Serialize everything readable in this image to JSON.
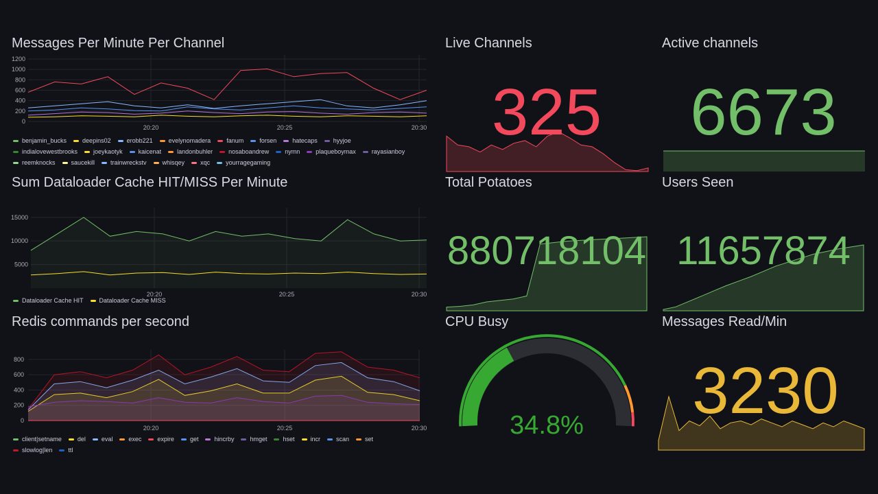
{
  "panels": {
    "messages": {
      "title": "Messages Per Minute Per Channel",
      "yticks": [
        "1200",
        "1000",
        "800",
        "600",
        "400",
        "200",
        "0"
      ],
      "xticks": [
        "20:20",
        "20:25",
        "20:30"
      ],
      "legend": [
        {
          "name": "benjamin_bucks",
          "color": "#73bf69"
        },
        {
          "name": "deepins02",
          "color": "#fade2a"
        },
        {
          "name": "erobb221",
          "color": "#8ab8ff"
        },
        {
          "name": "evelynomadera",
          "color": "#ff9830"
        },
        {
          "name": "fanum",
          "color": "#f2495c"
        },
        {
          "name": "forsen",
          "color": "#5794f2"
        },
        {
          "name": "hatecaps",
          "color": "#b877d9"
        },
        {
          "name": "hyyjoe",
          "color": "#705da0"
        },
        {
          "name": "indialovewestbrooks",
          "color": "#37872d"
        },
        {
          "name": "joeykaotyk",
          "color": "#fade2a"
        },
        {
          "name": "kaicenat",
          "color": "#5794f2"
        },
        {
          "name": "landonbuhler",
          "color": "#ff9830"
        },
        {
          "name": "nosaboandrew",
          "color": "#c4162a"
        },
        {
          "name": "nymn",
          "color": "#1f60c4"
        },
        {
          "name": "plaqueboymax",
          "color": "#8f3bb8"
        },
        {
          "name": "rayasianboy",
          "color": "#705da0"
        },
        {
          "name": "reemknocks",
          "color": "#96d98d"
        },
        {
          "name": "saucekill",
          "color": "#fff899"
        },
        {
          "name": "trainwreckstv",
          "color": "#8ab8ff"
        },
        {
          "name": "whisqey",
          "color": "#ffb357"
        },
        {
          "name": "xqc",
          "color": "#ff7383"
        },
        {
          "name": "yourragegaming",
          "color": "#73bfe8"
        }
      ]
    },
    "cache": {
      "title": "Sum Dataloader Cache HIT/MISS Per Minute",
      "yticks": [
        "15000",
        "10000",
        "5000"
      ],
      "xticks": [
        "20:20",
        "20:25",
        "20:30"
      ],
      "legend": [
        {
          "name": "Dataloader Cache HIT",
          "color": "#73bf69"
        },
        {
          "name": "Dataloader Cache MISS",
          "color": "#fade2a"
        }
      ]
    },
    "redis": {
      "title": "Redis commands per second",
      "yticks": [
        "800",
        "600",
        "400",
        "200",
        "0"
      ],
      "xticks": [
        "20:20",
        "20:25",
        "20:30"
      ],
      "legend": [
        {
          "name": "client|setname",
          "color": "#73bf69"
        },
        {
          "name": "del",
          "color": "#fade2a"
        },
        {
          "name": "eval",
          "color": "#8ab8ff"
        },
        {
          "name": "exec",
          "color": "#ff9830"
        },
        {
          "name": "expire",
          "color": "#f2495c"
        },
        {
          "name": "get",
          "color": "#5794f2"
        },
        {
          "name": "hincrby",
          "color": "#b877d9"
        },
        {
          "name": "hmget",
          "color": "#705da0"
        },
        {
          "name": "hset",
          "color": "#37872d"
        },
        {
          "name": "incr",
          "color": "#fade2a"
        },
        {
          "name": "scan",
          "color": "#5794f2"
        },
        {
          "name": "set",
          "color": "#ff9830"
        },
        {
          "name": "slowlog|len",
          "color": "#c4162a"
        },
        {
          "name": "ttl",
          "color": "#1f60c4"
        }
      ]
    },
    "live": {
      "title": "Live Channels",
      "value": "325",
      "color": "#f2495c"
    },
    "active": {
      "title": "Active channels",
      "value": "6673",
      "color": "#73bf69"
    },
    "potatoes": {
      "title": "Total Potatoes",
      "value": "880718104",
      "color": "#73bf69"
    },
    "users": {
      "title": "Users Seen",
      "value": "11657874",
      "color": "#73bf69"
    },
    "cpu": {
      "title": "CPU Busy",
      "value": "34.8%",
      "percent": 34.8,
      "color": "#37a832"
    },
    "msgread": {
      "title": "Messages Read/Min",
      "value": "3230",
      "color": "#eab839"
    }
  },
  "chart_data": [
    {
      "type": "line",
      "title": "Messages Per Minute Per Channel",
      "ylim": [
        0,
        1200
      ],
      "x": [
        "20:16",
        "20:17",
        "20:18",
        "20:19",
        "20:20",
        "20:21",
        "20:22",
        "20:23",
        "20:24",
        "20:25",
        "20:26",
        "20:27",
        "20:28",
        "20:29",
        "20:30",
        "20:31"
      ],
      "series": [
        {
          "name": "fanum",
          "values": [
            560,
            760,
            720,
            860,
            520,
            740,
            640,
            420,
            980,
            1010,
            860,
            920,
            940,
            640,
            420,
            600
          ]
        },
        {
          "name": "erobb221",
          "values": [
            260,
            300,
            340,
            380,
            300,
            260,
            320,
            250,
            300,
            340,
            380,
            420,
            300,
            260,
            320,
            400
          ]
        },
        {
          "name": "forsen",
          "values": [
            200,
            220,
            260,
            240,
            210,
            200,
            280,
            240,
            220,
            260,
            300,
            260,
            240,
            220,
            250,
            280
          ]
        },
        {
          "name": "kaicenat",
          "values": [
            120,
            150,
            180,
            170,
            140,
            160,
            200,
            170,
            150,
            180,
            190,
            160,
            140,
            170,
            180,
            160
          ]
        },
        {
          "name": "saucekill",
          "values": [
            80,
            90,
            110,
            100,
            90,
            120,
            100,
            90,
            110,
            120,
            100,
            90,
            110,
            100,
            90,
            110
          ]
        }
      ]
    },
    {
      "type": "line",
      "title": "Sum Dataloader Cache HIT/MISS Per Minute",
      "ylim": [
        0,
        17000
      ],
      "x": [
        "20:16",
        "20:17",
        "20:18",
        "20:19",
        "20:20",
        "20:21",
        "20:22",
        "20:23",
        "20:24",
        "20:25",
        "20:26",
        "20:27",
        "20:28",
        "20:29",
        "20:30",
        "20:31"
      ],
      "series": [
        {
          "name": "Dataloader Cache HIT",
          "values": [
            8000,
            11500,
            15000,
            11000,
            12000,
            11500,
            10000,
            12000,
            11000,
            11500,
            10500,
            10000,
            14500,
            11500,
            10000,
            10200
          ]
        },
        {
          "name": "Dataloader Cache MISS",
          "values": [
            2800,
            3100,
            3500,
            2800,
            3200,
            3300,
            2900,
            3400,
            3100,
            3000,
            3200,
            3100,
            3400,
            3100,
            2900,
            3000
          ]
        }
      ]
    },
    {
      "type": "area",
      "title": "Redis commands per second",
      "ylim": [
        0,
        900
      ],
      "x": [
        "20:16",
        "20:17",
        "20:18",
        "20:19",
        "20:20",
        "20:21",
        "20:22",
        "20:23",
        "20:24",
        "20:25",
        "20:26",
        "20:27",
        "20:28",
        "20:29",
        "20:30",
        "20:31"
      ],
      "series": [
        {
          "name": "hmget",
          "values": [
            180,
            240,
            260,
            250,
            230,
            300,
            240,
            230,
            300,
            250,
            230,
            320,
            330,
            240,
            220,
            210
          ]
        },
        {
          "name": "incr",
          "values": [
            120,
            340,
            360,
            300,
            380,
            540,
            330,
            390,
            480,
            360,
            360,
            530,
            580,
            370,
            340,
            260
          ]
        },
        {
          "name": "eval",
          "values": [
            140,
            480,
            510,
            430,
            530,
            660,
            480,
            570,
            680,
            520,
            500,
            720,
            760,
            560,
            510,
            390
          ]
        },
        {
          "name": "set",
          "values": [
            150,
            600,
            640,
            560,
            660,
            860,
            600,
            700,
            840,
            660,
            640,
            880,
            900,
            700,
            660,
            560
          ]
        }
      ]
    },
    {
      "type": "area",
      "title": "Live Channels",
      "values": [
        40,
        30,
        28,
        22,
        30,
        25,
        32,
        35,
        28,
        40,
        45,
        38,
        30,
        28,
        20,
        10,
        2,
        1,
        4
      ]
    },
    {
      "type": "area",
      "title": "Total Potatoes",
      "values": [
        5,
        6,
        8,
        12,
        14,
        16,
        20,
        90,
        92,
        94,
        95,
        96,
        97,
        98,
        99,
        100
      ]
    },
    {
      "type": "area",
      "title": "Users Seen",
      "values": [
        2,
        6,
        14,
        22,
        30,
        38,
        45,
        52,
        60,
        68,
        74,
        80,
        86,
        90,
        94,
        97,
        100
      ]
    },
    {
      "type": "area",
      "title": "Messages Read/Min",
      "values": [
        10,
        55,
        20,
        30,
        25,
        35,
        22,
        28,
        30,
        26,
        32,
        28,
        24,
        30,
        26,
        22,
        28,
        24,
        30,
        26,
        22
      ]
    }
  ]
}
